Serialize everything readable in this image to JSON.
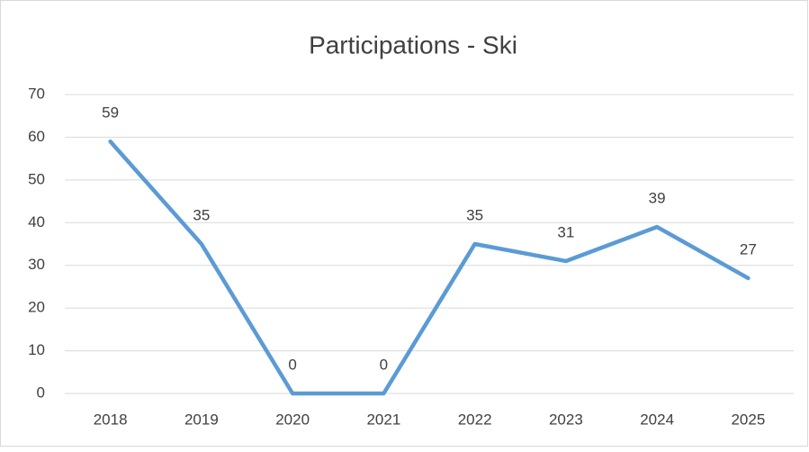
{
  "chart_data": {
    "type": "line",
    "title": "Participations - Ski",
    "categories": [
      "2018",
      "2019",
      "2020",
      "2021",
      "2022",
      "2023",
      "2024",
      "2025"
    ],
    "values": [
      59,
      35,
      0,
      0,
      35,
      31,
      39,
      27
    ],
    "color": "#5b9bd5",
    "ylim": [
      0,
      70
    ],
    "yticks": [
      0,
      10,
      20,
      30,
      40,
      50,
      60,
      70
    ],
    "grid": true
  }
}
